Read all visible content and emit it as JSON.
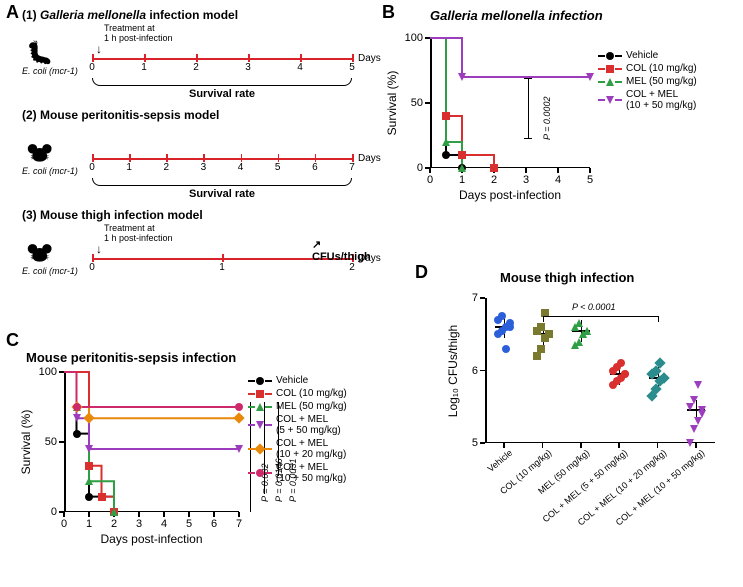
{
  "colors": {
    "vehicle": "#000000",
    "col": "#da2f2f",
    "mel": "#2f9e44",
    "combo": "#9b3dbd",
    "combo2": "#e8890c",
    "combo3": "#cc2a6b",
    "blue": "#2b5fd9",
    "olive": "#7a7a2e",
    "teal": "#2a8c8c",
    "axis": "#000000",
    "timeline": "#d8232a"
  },
  "A": {
    "label": "A",
    "rows": [
      {
        "n": "(1)",
        "title": "Galleria mellonella",
        "title2": " infection model",
        "org": "E. coli (mcr-1)",
        "treatment": "Treatment at\n1 h post-infection",
        "days": 5,
        "endpoint": "Survival rate",
        "icon": "larva"
      },
      {
        "n": "(2)",
        "title": "Mouse peritonitis-sepsis model",
        "title2": "",
        "org": "E. coli (mcr-1)",
        "treatment": "",
        "days": 7,
        "endpoint": "Survival rate",
        "icon": "mouse"
      },
      {
        "n": "(3)",
        "title": "Mouse thigh infection model",
        "title2": "",
        "org": "E. coli (mcr-1)",
        "treatment": "Treatment at\n1 h post-infection",
        "days": 2,
        "endpoint": "CFUs/thigh",
        "icon": "mouse"
      }
    ],
    "days_label": "Days"
  },
  "B": {
    "label": "B",
    "title": "Galleria mellonella infection",
    "xlab": "Days post-infection",
    "ylab": "Survival (%)",
    "xlim": [
      0,
      5
    ],
    "xticks": [
      0,
      1,
      2,
      3,
      4,
      5
    ],
    "ylim": [
      0,
      100
    ],
    "yticks": [
      0,
      50,
      100
    ],
    "pval": "P = 0.0002",
    "series": [
      {
        "name": "Vehicle",
        "color": "#000000",
        "marker": "circle",
        "steps": [
          [
            0,
            100
          ],
          [
            0.5,
            10
          ],
          [
            1,
            0
          ]
        ]
      },
      {
        "name": "COL (10 mg/kg)",
        "color": "#da2f2f",
        "marker": "square",
        "steps": [
          [
            0,
            100
          ],
          [
            0.5,
            40
          ],
          [
            1,
            10
          ],
          [
            2,
            0
          ]
        ]
      },
      {
        "name": "MEL (50 mg/kg)",
        "color": "#2f9e44",
        "marker": "tri",
        "steps": [
          [
            0,
            100
          ],
          [
            0.5,
            20
          ],
          [
            1,
            0
          ]
        ]
      },
      {
        "name": "COL + MEL\n(10 + 50 mg/kg)",
        "color": "#9b3dbd",
        "marker": "tri-dn",
        "steps": [
          [
            0,
            100
          ],
          [
            1,
            70
          ],
          [
            5,
            70
          ]
        ]
      }
    ]
  },
  "C": {
    "label": "C",
    "title": "Mouse peritonitis-sepsis infection",
    "xlab": "Days post-infection",
    "ylab": "Survival (%)",
    "xlim": [
      0,
      7
    ],
    "xticks": [
      0,
      1,
      2,
      3,
      4,
      5,
      6,
      7
    ],
    "ylim": [
      0,
      100
    ],
    "yticks": [
      0,
      50,
      100
    ],
    "pvals": [
      {
        "text": "P = 0.032",
        "pair": [
          2,
          3
        ]
      },
      {
        "text": "P = 0.0146",
        "pair": [
          2,
          4
        ]
      },
      {
        "text": "P = 0.0031",
        "pair": [
          2,
          5
        ]
      }
    ],
    "series": [
      {
        "name": "Vehicle",
        "color": "#000000",
        "marker": "circle",
        "steps": [
          [
            0,
            100
          ],
          [
            0.5,
            56
          ],
          [
            1,
            11
          ],
          [
            2,
            0
          ]
        ]
      },
      {
        "name": "COL (10 mg/kg)",
        "color": "#da2f2f",
        "marker": "square",
        "steps": [
          [
            0,
            100
          ],
          [
            1,
            33
          ],
          [
            1.5,
            11
          ],
          [
            2,
            0
          ]
        ]
      },
      {
        "name": "MEL (50 mg/kg)",
        "color": "#2f9e44",
        "marker": "tri",
        "steps": [
          [
            0,
            100
          ],
          [
            0.5,
            75
          ],
          [
            1,
            22
          ],
          [
            2,
            0
          ]
        ]
      },
      {
        "name": "COL + MEL\n(5 + 50 mg/kg)",
        "color": "#9b3dbd",
        "marker": "tri-dn",
        "steps": [
          [
            0,
            100
          ],
          [
            0.5,
            67
          ],
          [
            1,
            45
          ],
          [
            7,
            45
          ]
        ]
      },
      {
        "name": "COL + MEL\n(10 + 20 mg/kg)",
        "color": "#e8890c",
        "marker": "dia",
        "steps": [
          [
            0,
            100
          ],
          [
            0.5,
            75
          ],
          [
            1,
            67
          ],
          [
            7,
            67
          ]
        ]
      },
      {
        "name": "COL + MEL\n(10 + 50 mg/kg)",
        "color": "#cc2a6b",
        "marker": "circle",
        "steps": [
          [
            0,
            100
          ],
          [
            0.5,
            75
          ],
          [
            7,
            75
          ]
        ]
      }
    ]
  },
  "D": {
    "label": "D",
    "title": "Mouse thigh infection",
    "ylab": "Log₁₀ CFUs/thigh",
    "ylim": [
      5,
      7
    ],
    "yticks": [
      5,
      6,
      7
    ],
    "pval": "P < 0.0001",
    "groups": [
      {
        "name": "Vehicle",
        "color": "#2b5fd9",
        "marker": "circle",
        "mean": 6.6,
        "points": [
          6.5,
          6.55,
          6.6,
          6.65,
          6.7,
          6.75,
          6.3,
          6.6
        ]
      },
      {
        "name": "COL (10 mg/kg)",
        "color": "#7a7a2e",
        "marker": "square",
        "mean": 6.5,
        "points": [
          6.2,
          6.3,
          6.45,
          6.5,
          6.55,
          6.6,
          6.8,
          6.5
        ]
      },
      {
        "name": "MEL (50 mg/kg)",
        "color": "#2f9e44",
        "marker": "tri",
        "mean": 6.55,
        "points": [
          6.35,
          6.4,
          6.5,
          6.55,
          6.6,
          6.65,
          6.5,
          6.55
        ]
      },
      {
        "name": "COL + MEL (5 + 50 mg/kg)",
        "color": "#da2f2f",
        "marker": "circle",
        "mean": 5.95,
        "points": [
          5.8,
          5.85,
          5.9,
          5.95,
          6.0,
          6.05,
          6.1,
          5.95
        ]
      },
      {
        "name": "COL + MEL (10 + 20 mg/kg)",
        "color": "#2a8c8c",
        "marker": "dia",
        "mean": 5.9,
        "points": [
          5.65,
          5.75,
          5.85,
          5.9,
          5.95,
          6.0,
          6.1,
          5.9
        ]
      },
      {
        "name": "COL + MEL (10 + 50 mg/kg)",
        "color": "#9b3dbd",
        "marker": "tri-dn",
        "mean": 5.45,
        "points": [
          5.0,
          5.2,
          5.3,
          5.4,
          5.5,
          5.6,
          5.8,
          5.45
        ]
      }
    ]
  }
}
